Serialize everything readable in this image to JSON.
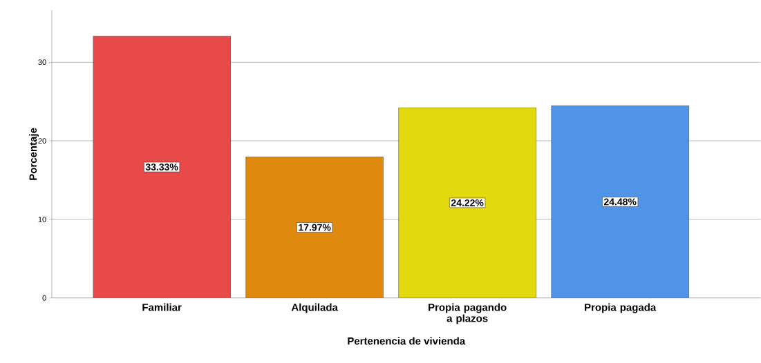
{
  "chart_data": {
    "type": "bar",
    "xlabel": "Pertenencia de vivienda",
    "ylabel": "Porcentaje",
    "categories": [
      "Familiar",
      "Alquilada",
      "Propia pagando a plazos",
      "Propia pagada"
    ],
    "values": [
      33.33,
      17.97,
      24.22,
      24.48
    ],
    "value_labels": [
      "33.33%",
      "17.97%",
      "24.22%",
      "24.48%"
    ],
    "colors": [
      "#e84a4a",
      "#e0890f",
      "#e3d90f",
      "#4f94e6"
    ],
    "ylim": [
      0,
      36.6
    ],
    "yticks": [
      0,
      10,
      20,
      30
    ],
    "grid": "y"
  }
}
